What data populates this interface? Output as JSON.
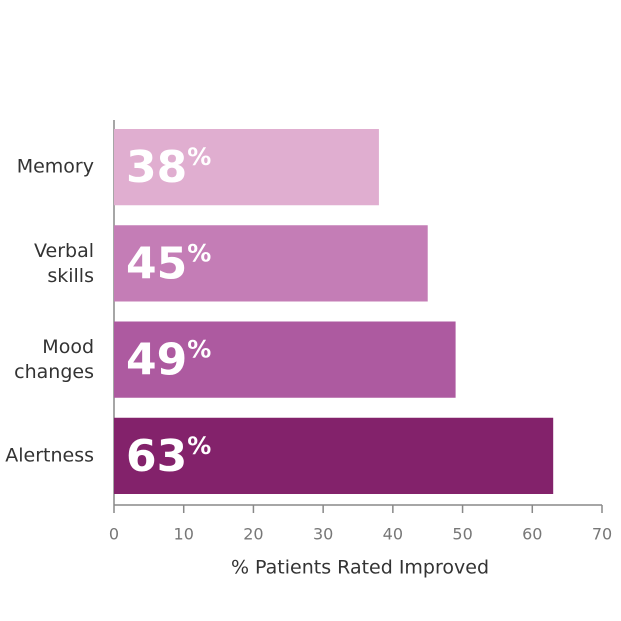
{
  "chart_data": {
    "type": "bar",
    "orientation": "horizontal",
    "categories": [
      "Memory",
      "Verbal skills",
      "Mood changes",
      "Alertness"
    ],
    "values": [
      38,
      45,
      49,
      63
    ],
    "value_labels": [
      "38%",
      "45%",
      "49%",
      "63%"
    ],
    "colors": [
      "#e0aed0",
      "#c47db6",
      "#ad5aa0",
      "#83226b"
    ],
    "x_label": "% Patients Rated Improved",
    "xlim": [
      0,
      70
    ],
    "xticks": [
      0,
      10,
      20,
      30,
      40,
      50,
      60,
      70
    ]
  }
}
